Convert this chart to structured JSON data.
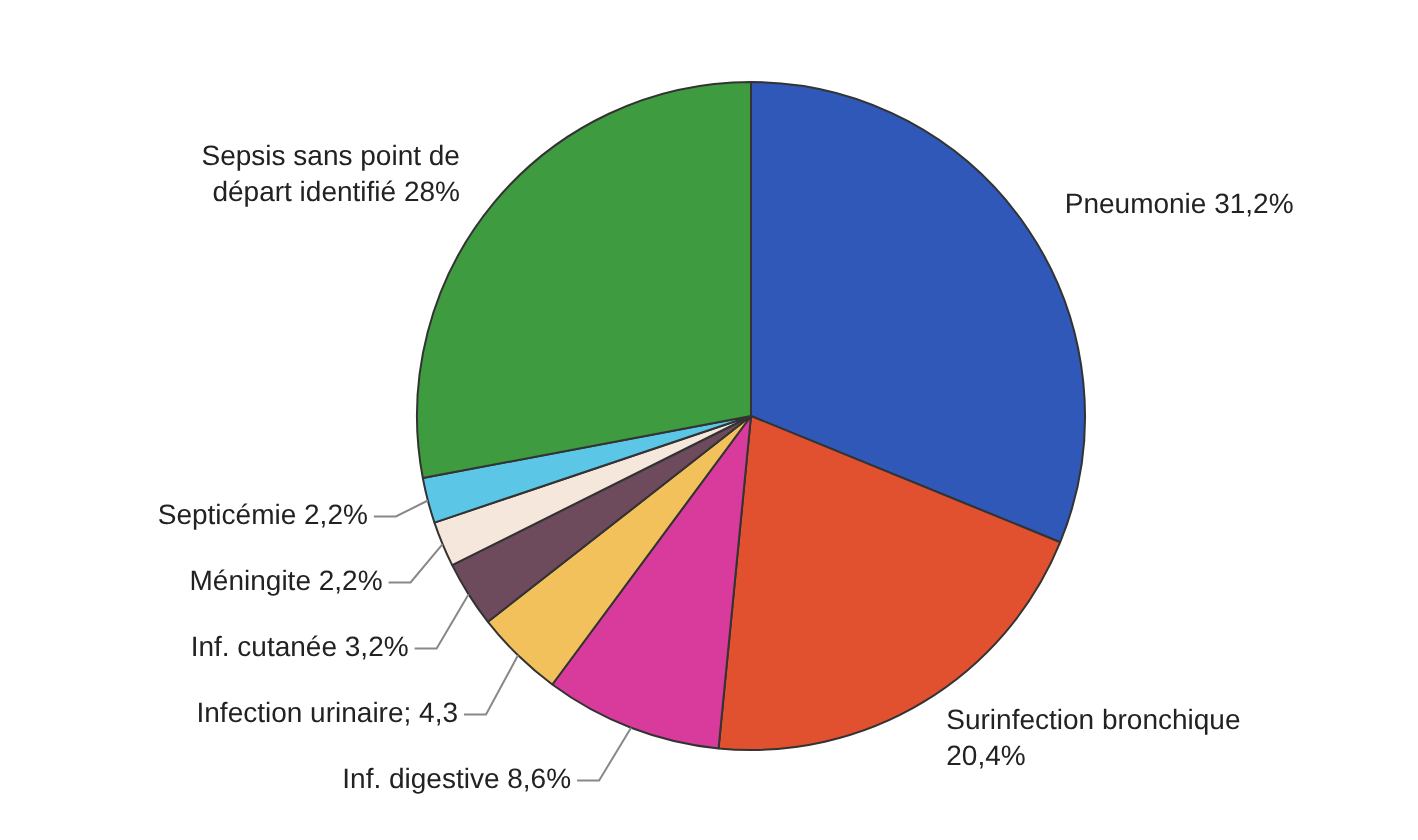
{
  "chart_data": {
    "type": "pie",
    "categories": [
      "Pneumonie",
      "Surinfection bronchique",
      "Inf. digestive",
      "Infection urinaire",
      "Inf. cutanée",
      "Méningite",
      "Septicémie",
      "Sepsis sans point de départ identifié"
    ],
    "values": [
      31.2,
      20.4,
      8.6,
      4.3,
      3.2,
      2.2,
      2.2,
      28
    ],
    "value_labels": [
      "31,2%",
      "20,4%",
      "8,6%",
      "4,3",
      "3,2%",
      "2,2%",
      "2,2%",
      "28%"
    ],
    "colors": [
      "#2f58b8",
      "#e2512f",
      "#d83b9c",
      "#f3c15c",
      "#6d4a5c",
      "#f6e7dc",
      "#5bc6e6",
      "#3f9b3f"
    ],
    "legend": false
  }
}
